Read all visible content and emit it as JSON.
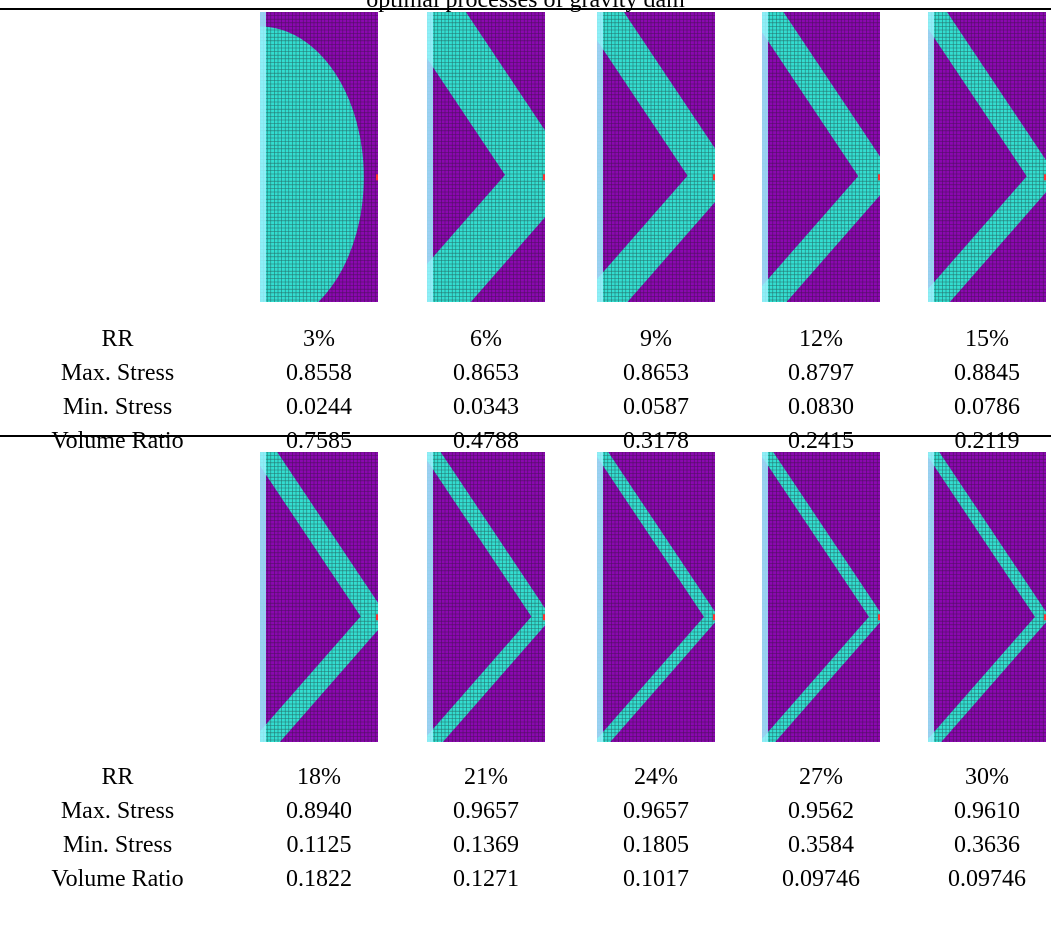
{
  "caption": "optimal processes of gravity dam",
  "rows_left_labels": [
    "RR",
    "Max. Stress",
    "Min. Stress",
    "Volume Ratio"
  ],
  "colors": {
    "void": "#8b08b0",
    "material": "#33ddd0",
    "grid_line": "#1a1a1a",
    "support": "#9ef3ff",
    "load_mark": "#ff3333"
  },
  "panels": [
    {
      "RR": "3%",
      "max_stress": "0.8558",
      "min_stress": "0.0244",
      "volume_ratio": "0.7585",
      "shape": "solid-half-ellipse",
      "band_fraction": 0.76
    },
    {
      "RR": "6%",
      "max_stress": "0.8653",
      "min_stress": "0.0343",
      "volume_ratio": "0.4788",
      "shape": "chevron",
      "band_fraction": 0.48
    },
    {
      "RR": "9%",
      "max_stress": "0.8653",
      "min_stress": "0.0587",
      "volume_ratio": "0.3178",
      "shape": "chevron",
      "band_fraction": 0.32
    },
    {
      "RR": "12%",
      "max_stress": "0.8797",
      "min_stress": "0.0830",
      "volume_ratio": "0.2415",
      "shape": "chevron",
      "band_fraction": 0.24
    },
    {
      "RR": "15%",
      "max_stress": "0.8845",
      "min_stress": "0.0786",
      "volume_ratio": "0.2119",
      "shape": "chevron",
      "band_fraction": 0.21
    },
    {
      "RR": "18%",
      "max_stress": "0.8940",
      "min_stress": "0.1125",
      "volume_ratio": "0.1822",
      "shape": "chevron",
      "band_fraction": 0.18
    },
    {
      "RR": "21%",
      "max_stress": "0.9657",
      "min_stress": "0.1369",
      "volume_ratio": "0.1271",
      "shape": "chevron",
      "band_fraction": 0.13
    },
    {
      "RR": "24%",
      "max_stress": "0.9657",
      "min_stress": "0.1805",
      "volume_ratio": "0.1017",
      "shape": "chevron",
      "band_fraction": 0.1
    },
    {
      "RR": "27%",
      "max_stress": "0.9562",
      "min_stress": "0.3584",
      "volume_ratio": "0.09746",
      "shape": "chevron",
      "band_fraction": 0.1
    },
    {
      "RR": "30%",
      "max_stress": "0.9610",
      "min_stress": "0.3636",
      "volume_ratio": "0.09746",
      "shape": "chevron",
      "band_fraction": 0.1
    }
  ]
}
